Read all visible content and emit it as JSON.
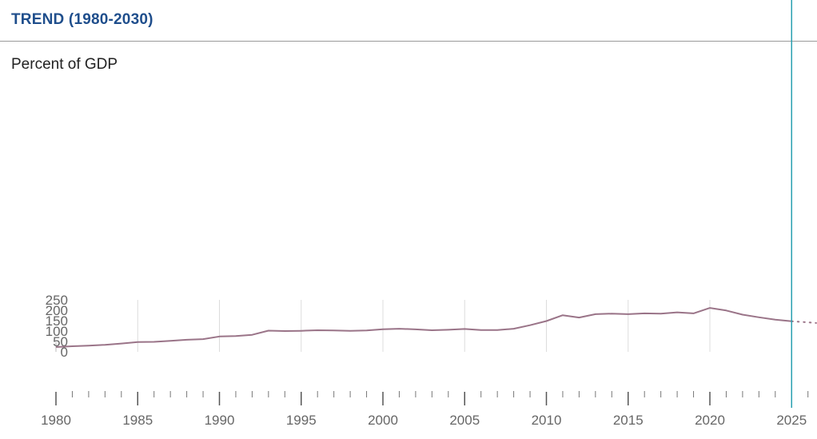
{
  "header": {
    "title": "TREND (1980-2030)"
  },
  "colors": {
    "title": "#1f4e8c",
    "series": "#9a7488",
    "grid": "#dcdcdc",
    "cursor": "#2aa0b0",
    "axis": "#666666"
  },
  "chart_data": {
    "type": "line",
    "title": "TREND (1980-2030)",
    "ylabel": "Percent of GDP",
    "xlabel": "",
    "ylim": [
      0,
      250
    ],
    "xlim": [
      1980,
      2026.5
    ],
    "yticks": [
      0,
      50,
      100,
      150,
      200,
      250
    ],
    "xticks": [
      1980,
      1985,
      1990,
      1995,
      2000,
      2005,
      2010,
      2015,
      2020,
      2025
    ],
    "grid": true,
    "selected_year": 2025,
    "series": [
      {
        "style": "solid",
        "x": [
          1980,
          1981,
          1982,
          1983,
          1984,
          1985,
          1986,
          1987,
          1988,
          1989,
          1990,
          1991,
          1992,
          1993,
          1994,
          1995,
          1996,
          1997,
          1998,
          1999,
          2000,
          2001,
          2002,
          2003,
          2004,
          2005,
          2006,
          2007,
          2008,
          2009,
          2010,
          2011,
          2012,
          2013,
          2014,
          2015,
          2016,
          2017,
          2018,
          2019,
          2020,
          2021,
          2022,
          2023,
          2024,
          2025
        ],
        "values": [
          23,
          27,
          30,
          34,
          40,
          47,
          48,
          53,
          58,
          61,
          74,
          76,
          82,
          102,
          100,
          101,
          104,
          103,
          101,
          103,
          109,
          111,
          108,
          104,
          106,
          110,
          105,
          105,
          111,
          128,
          148,
          176,
          165,
          181,
          184,
          181,
          185,
          184,
          190,
          185,
          211,
          199,
          179,
          166,
          155,
          147
        ]
      },
      {
        "style": "dotted",
        "x": [
          2025,
          2026,
          2026.5
        ],
        "values": [
          147,
          142,
          139
        ]
      }
    ]
  }
}
